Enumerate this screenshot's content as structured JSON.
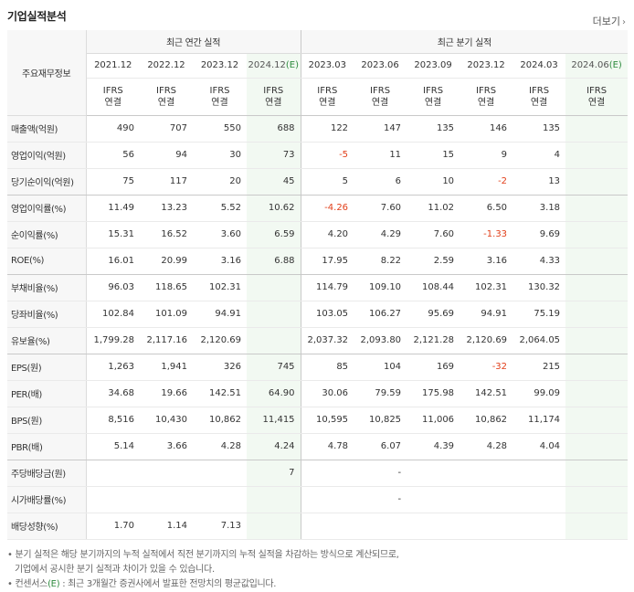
{
  "page_title": "기업실적분석",
  "more_link": "더보기",
  "header": {
    "row_label": "주요재무정보",
    "annual_group": "최근 연간 실적",
    "quarter_group": "최근 분기 실적",
    "periods": [
      "2021.12",
      "2022.12",
      "2023.12",
      "2024.12",
      "2023.03",
      "2023.06",
      "2023.09",
      "2023.12",
      "2024.03",
      "2024.06"
    ],
    "estimate_marker": "(E)",
    "ifrs_line1": "IFRS",
    "ifrs_line2": "연결"
  },
  "rows": [
    {
      "label": "매출액(억원)",
      "values": [
        "490",
        "707",
        "550",
        "688",
        "122",
        "147",
        "135",
        "146",
        "135",
        ""
      ]
    },
    {
      "label": "영업이익(억원)",
      "values": [
        "56",
        "94",
        "30",
        "73",
        "-5",
        "11",
        "15",
        "9",
        "4",
        ""
      ]
    },
    {
      "label": "당기순이익(억원)",
      "values": [
        "75",
        "117",
        "20",
        "45",
        "5",
        "6",
        "10",
        "-2",
        "13",
        ""
      ]
    },
    {
      "label": "영업이익률(%)",
      "values": [
        "11.49",
        "13.23",
        "5.52",
        "10.62",
        "-4.26",
        "7.60",
        "11.02",
        "6.50",
        "3.18",
        ""
      ]
    },
    {
      "label": "순이익률(%)",
      "values": [
        "15.31",
        "16.52",
        "3.60",
        "6.59",
        "4.20",
        "4.29",
        "7.60",
        "-1.33",
        "9.69",
        ""
      ]
    },
    {
      "label": "ROE(%)",
      "values": [
        "16.01",
        "20.99",
        "3.16",
        "6.88",
        "17.95",
        "8.22",
        "2.59",
        "3.16",
        "4.33",
        ""
      ]
    },
    {
      "label": "부채비율(%)",
      "values": [
        "96.03",
        "118.65",
        "102.31",
        "",
        "114.79",
        "109.10",
        "108.44",
        "102.31",
        "130.32",
        ""
      ]
    },
    {
      "label": "당좌비율(%)",
      "values": [
        "102.84",
        "101.09",
        "94.91",
        "",
        "103.05",
        "106.27",
        "95.69",
        "94.91",
        "75.19",
        ""
      ]
    },
    {
      "label": "유보율(%)",
      "values": [
        "1,799.28",
        "2,117.16",
        "2,120.69",
        "",
        "2,037.32",
        "2,093.80",
        "2,121.28",
        "2,120.69",
        "2,064.05",
        ""
      ]
    },
    {
      "label": "EPS(원)",
      "values": [
        "1,263",
        "1,941",
        "326",
        "745",
        "85",
        "104",
        "169",
        "-32",
        "215",
        ""
      ]
    },
    {
      "label": "PER(배)",
      "values": [
        "34.68",
        "19.66",
        "142.51",
        "64.90",
        "30.06",
        "79.59",
        "175.98",
        "142.51",
        "99.09",
        ""
      ]
    },
    {
      "label": "BPS(원)",
      "values": [
        "8,516",
        "10,430",
        "10,862",
        "11,415",
        "10,595",
        "10,825",
        "11,006",
        "10,862",
        "11,174",
        ""
      ]
    },
    {
      "label": "PBR(배)",
      "values": [
        "5.14",
        "3.66",
        "4.28",
        "4.24",
        "4.78",
        "6.07",
        "4.39",
        "4.28",
        "4.04",
        ""
      ]
    },
    {
      "label": "주당배당금(원)",
      "values": [
        "",
        "",
        "",
        "7",
        "",
        "-",
        "",
        "",
        "",
        ""
      ]
    },
    {
      "label": "시가배당률(%)",
      "values": [
        "",
        "",
        "",
        "",
        "",
        "-",
        "",
        "",
        "",
        ""
      ]
    },
    {
      "label": "배당성향(%)",
      "values": [
        "1.70",
        "1.14",
        "7.13",
        "",
        "",
        "",
        "",
        "",
        "",
        ""
      ]
    }
  ],
  "notes": {
    "line1": "• 분기 실적은 해당 분기까지의 누적 실적에서 직전 분기까지의 누적 실적을 차감하는 방식으로 계산되므로,",
    "line2": "기업에서 공시한 분기 실적과 차이가 있을 수 있습니다.",
    "line3_prefix": "• 컨센서스",
    "line3_marker": "(E)",
    "line3_suffix": " : 최근 3개월간 증권사에서 발표한 전망치의 평균값입니다."
  },
  "colors": {
    "ifrs": "#e8501c",
    "negative": "#e2401b",
    "estimate_bg": "#f2f9f2",
    "estimate_marker": "#2e8b3e",
    "label_bg": "#f7f7f7"
  }
}
